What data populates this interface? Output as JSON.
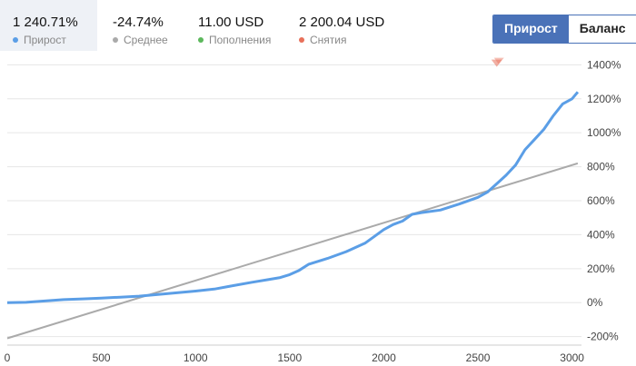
{
  "stats": [
    {
      "value": "1 240.71%",
      "label": "Прирост",
      "color": "#5b9ee6",
      "active": true
    },
    {
      "value": "-24.74%",
      "label": "Среднее",
      "color": "#aaaaaa",
      "active": false
    },
    {
      "value": "11.00 USD",
      "label": "Пополнения",
      "color": "#5cb85c",
      "active": false
    },
    {
      "value": "2 200.04 USD",
      "label": "Снятия",
      "color": "#e8705a",
      "active": false
    }
  ],
  "toggle": {
    "growth": "Прирост",
    "balance": "Баланс"
  },
  "chart_data": {
    "type": "line",
    "title": "",
    "xlabel": "",
    "ylabel": "",
    "xlim": [
      0,
      3050
    ],
    "ylim": [
      -250,
      1450
    ],
    "x_ticks": [
      0,
      500,
      1000,
      1500,
      2000,
      2500,
      3000
    ],
    "y_ticks": [
      -200,
      0,
      200,
      400,
      600,
      800,
      1000,
      1200,
      1400
    ],
    "y_tick_format": "percent",
    "grid": "horizontal",
    "series": [
      {
        "color": "#5b9ee6",
        "points": [
          [
            0,
            0
          ],
          [
            100,
            2
          ],
          [
            200,
            10
          ],
          [
            300,
            18
          ],
          [
            400,
            22
          ],
          [
            500,
            27
          ],
          [
            600,
            32
          ],
          [
            700,
            38
          ],
          [
            800,
            48
          ],
          [
            900,
            58
          ],
          [
            1000,
            68
          ],
          [
            1100,
            80
          ],
          [
            1200,
            100
          ],
          [
            1300,
            120
          ],
          [
            1400,
            138
          ],
          [
            1450,
            148
          ],
          [
            1500,
            165
          ],
          [
            1550,
            190
          ],
          [
            1600,
            225
          ],
          [
            1700,
            260
          ],
          [
            1800,
            300
          ],
          [
            1900,
            350
          ],
          [
            1950,
            390
          ],
          [
            2000,
            430
          ],
          [
            2050,
            460
          ],
          [
            2100,
            480
          ],
          [
            2150,
            520
          ],
          [
            2200,
            530
          ],
          [
            2300,
            545
          ],
          [
            2400,
            580
          ],
          [
            2500,
            620
          ],
          [
            2550,
            650
          ],
          [
            2600,
            700
          ],
          [
            2650,
            750
          ],
          [
            2700,
            810
          ],
          [
            2750,
            900
          ],
          [
            2800,
            960
          ],
          [
            2850,
            1020
          ],
          [
            2900,
            1100
          ],
          [
            2950,
            1170
          ],
          [
            3000,
            1200
          ],
          [
            3030,
            1240
          ]
        ]
      },
      {
        "color": "#aaaaaa",
        "points": [
          [
            0,
            -210
          ],
          [
            3030,
            820
          ]
        ]
      }
    ],
    "markers": [
      {
        "x": 2600,
        "y": 1420,
        "color": "#e8705a"
      }
    ]
  }
}
